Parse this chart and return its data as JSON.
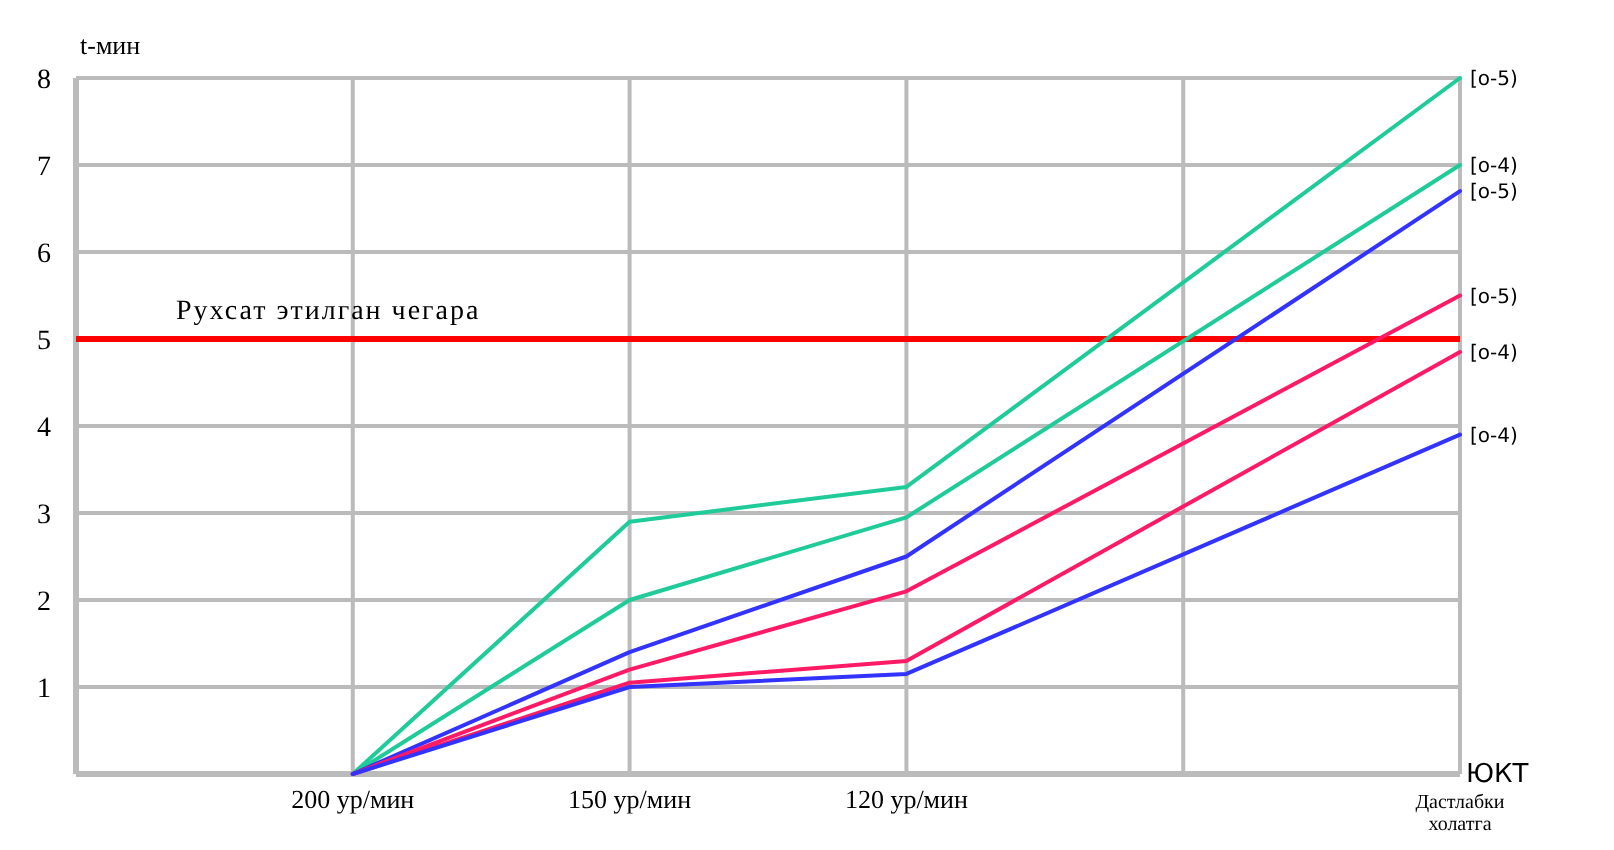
{
  "chart_data": {
    "type": "line",
    "ylabel": "t-мин",
    "xlabel": "ЮКТ",
    "categories": [
      null,
      "200 ур/мин",
      "150 ур/мин",
      "120 ур/мин",
      null,
      "Дастлабки холатга"
    ],
    "ylim": [
      0,
      8
    ],
    "yticks": [
      1,
      2,
      3,
      4,
      5,
      6,
      7,
      8
    ],
    "grid": true,
    "marker": "none",
    "series": [
      {
        "name": "[о-5)",
        "color": "#1fcc99",
        "values": [
          null,
          0,
          2.9,
          3.3,
          null,
          8
        ]
      },
      {
        "name": "[о-4)",
        "color": "#1fcc99",
        "values": [
          null,
          0,
          2.0,
          2.95,
          null,
          7.0
        ]
      },
      {
        "name": "[о-5)",
        "color": "#3333ff",
        "values": [
          null,
          0,
          1.4,
          2.5,
          null,
          6.7
        ]
      },
      {
        "name": "[о-5)",
        "color": "#ff1a66",
        "values": [
          null,
          0,
          1.2,
          2.1,
          null,
          5.5
        ]
      },
      {
        "name": "[о-4)",
        "color": "#ff1a66",
        "values": [
          null,
          0,
          1.05,
          1.3,
          null,
          4.85
        ]
      },
      {
        "name": "[о-4)",
        "color": "#3333ff",
        "values": [
          null,
          0,
          1.0,
          1.15,
          null,
          3.9
        ]
      }
    ],
    "ref_lines": [
      {
        "axis": "y",
        "value": 5,
        "label": "Рухсат этилган чегара",
        "color": "#ff0000"
      }
    ]
  }
}
